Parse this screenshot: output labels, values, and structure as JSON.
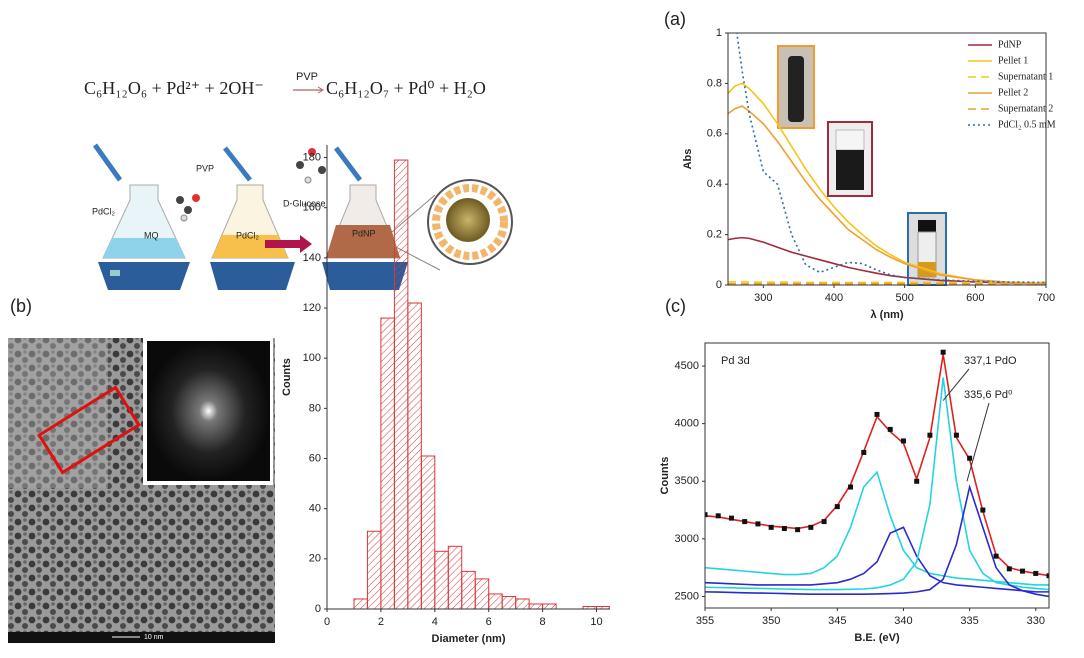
{
  "panel_labels": [
    "(a)",
    "(b)",
    "(c)"
  ],
  "scheme": {
    "reactants": "C₆H₁₂O₆ +  Pd²⁺ + 2OH⁻",
    "arrow_label": "PVP",
    "products": "C₆H₁₂O₇ +  Pd⁰ +  H₂O",
    "labels": [
      "PdCl₂",
      "PVP",
      "MQ",
      "PdCl₂",
      "D-Glucose",
      "PdNP"
    ]
  },
  "tem": {
    "scale_bar": "10 nm"
  },
  "chart_data": [
    {
      "type": "line",
      "xlabel": "λ (nm)",
      "ylabel": "Abs",
      "x": [
        250,
        260,
        270,
        280,
        300,
        320,
        340,
        360,
        380,
        400,
        420,
        440,
        460,
        480,
        500,
        550,
        600,
        650,
        700
      ],
      "xlim": [
        250,
        700
      ],
      "xticks": [
        300,
        400,
        500,
        600,
        700
      ],
      "ylim": [
        0,
        1
      ],
      "yticks": [
        0,
        0.2,
        0.4,
        0.6,
        0.8,
        1
      ],
      "legend": "upper right",
      "series": [
        {
          "name": "PdNP",
          "color": "#a3293d",
          "dash": "solid",
          "values": [
            0.18,
            0.185,
            0.188,
            0.185,
            0.17,
            0.15,
            0.13,
            0.115,
            0.1,
            0.085,
            0.07,
            0.058,
            0.047,
            0.037,
            0.03,
            0.018,
            0.012,
            0.008,
            0.005
          ]
        },
        {
          "name": "Pellet 1",
          "color": "#f5c518",
          "dash": "solid",
          "values": [
            0.76,
            0.79,
            0.8,
            0.78,
            0.72,
            0.64,
            0.55,
            0.46,
            0.38,
            0.31,
            0.25,
            0.2,
            0.155,
            0.12,
            0.09,
            0.045,
            0.02,
            0.01,
            0.005
          ]
        },
        {
          "name": "Supernatant 1",
          "color": "#f5c518",
          "dash": "dashed",
          "values": [
            0.012,
            0.012,
            0.012,
            0.012,
            0.011,
            0.011,
            0.011,
            0.01,
            0.01,
            0.01,
            0.01,
            0.01,
            0.01,
            0.01,
            0.01,
            0.01,
            0.01,
            0.01,
            0.01
          ]
        },
        {
          "name": "Pellet 2",
          "color": "#f0a030",
          "dash": "solid",
          "values": [
            0.68,
            0.7,
            0.71,
            0.69,
            0.64,
            0.57,
            0.49,
            0.41,
            0.34,
            0.28,
            0.22,
            0.18,
            0.14,
            0.11,
            0.085,
            0.04,
            0.02,
            0.01,
            0.005
          ]
        },
        {
          "name": "Supernatant 2",
          "color": "#f0a030",
          "dash": "dashed",
          "values": [
            0.005,
            0.005,
            0.005,
            0.005,
            0.005,
            0.005,
            0.005,
            0.005,
            0.005,
            0.005,
            0.005,
            0.005,
            0.005,
            0.005,
            0.005,
            0.005,
            0.005,
            0.005,
            0.005
          ]
        },
        {
          "name": "PdCl₂ 0.5 mM",
          "color": "#2a6fa8",
          "dash": "dotted",
          "values": [
            1.2,
            1.05,
            0.85,
            0.68,
            0.45,
            0.4,
            0.2,
            0.08,
            0.05,
            0.07,
            0.09,
            0.085,
            0.06,
            0.04,
            0.03,
            0.02,
            0.015,
            0.012,
            0.01
          ]
        }
      ]
    },
    {
      "type": "histogram",
      "xlabel": "Diameter (nm)",
      "ylabel": "Counts",
      "color": "#d9383a",
      "bins": [
        1,
        1.5,
        2,
        2.5,
        3,
        3.5,
        4,
        4.5,
        5,
        5.5,
        6,
        6.5,
        7,
        7.5,
        8,
        8.5,
        9,
        9.5,
        10,
        10.5
      ],
      "values": [
        4,
        31,
        116,
        179,
        122,
        61,
        23,
        25,
        15,
        12,
        6,
        5,
        4,
        2,
        2,
        0,
        0,
        1,
        1
      ],
      "xlim": [
        0,
        10.5
      ],
      "xticks": [
        0,
        2,
        4,
        6,
        8,
        10
      ],
      "ylim": [
        0,
        185
      ],
      "yticks": [
        0,
        20,
        40,
        60,
        80,
        100,
        120,
        140,
        160,
        180
      ]
    },
    {
      "type": "line",
      "xlabel": "B.E. (eV)",
      "ylabel": "Counts",
      "annotations": [
        "Pd 3d",
        "337,1 PdO",
        "335,6 Pd⁰"
      ],
      "x": [
        355,
        354,
        353,
        352,
        351,
        350,
        349,
        348,
        347,
        346,
        345,
        344,
        343,
        342,
        341,
        340,
        339,
        338,
        337,
        336,
        335,
        334,
        333,
        332,
        331,
        330,
        329
      ],
      "xlim": [
        355,
        329
      ],
      "xticks": [
        355,
        350,
        345,
        340,
        335,
        330
      ],
      "ylim": [
        2400,
        4700
      ],
      "yticks": [
        2500,
        3000,
        3500,
        4000,
        4500
      ],
      "series": [
        {
          "color": "#22d3e6",
          "dash": "solid",
          "values": [
            2750,
            2740,
            2730,
            2720,
            2710,
            2700,
            2690,
            2690,
            2700,
            2750,
            2850,
            3100,
            3450,
            3580,
            3200,
            2900,
            2750,
            2700,
            2680,
            2660,
            2650,
            2640,
            2630,
            2620,
            2610,
            2600,
            2600
          ]
        },
        {
          "color": "#2a2ad0",
          "dash": "solid",
          "values": [
            2620,
            2615,
            2610,
            2605,
            2600,
            2600,
            2600,
            2600,
            2600,
            2610,
            2620,
            2650,
            2700,
            2800,
            3050,
            3100,
            2850,
            2680,
            2620,
            2600,
            2590,
            2580,
            2570,
            2560,
            2550,
            2540,
            2540
          ]
        },
        {
          "color": "#22d3e6",
          "dash": "solid",
          "values": [
            2580,
            2578,
            2575,
            2572,
            2570,
            2568,
            2565,
            2562,
            2560,
            2560,
            2560,
            2562,
            2565,
            2575,
            2600,
            2650,
            2800,
            3300,
            4400,
            3500,
            2900,
            2700,
            2620,
            2600,
            2580,
            2570,
            2560
          ]
        },
        {
          "color": "#2a2ad0",
          "dash": "solid",
          "values": [
            2540,
            2538,
            2535,
            2532,
            2530,
            2528,
            2525,
            2522,
            2520,
            2520,
            2520,
            2520,
            2520,
            2522,
            2525,
            2530,
            2540,
            2560,
            2650,
            2950,
            3450,
            3100,
            2750,
            2600,
            2550,
            2520,
            2500
          ]
        },
        {
          "color": "#e0201c",
          "dash": "solid",
          "values": [
            3200,
            3190,
            3170,
            3150,
            3130,
            3110,
            3100,
            3090,
            3110,
            3160,
            3290,
            3470,
            3760,
            4060,
            3930,
            3830,
            3520,
            3880,
            4600,
            3880,
            3690,
            3240,
            2860,
            2750,
            2720,
            2700,
            2680
          ]
        },
        {
          "color": "#111111",
          "marker": "square",
          "values": [
            3210,
            3200,
            3180,
            3150,
            3130,
            3100,
            3090,
            3080,
            3100,
            3150,
            3280,
            3450,
            3750,
            4080,
            3950,
            3850,
            3500,
            3900,
            4620,
            3900,
            3700,
            3250,
            2850,
            2740,
            2720,
            2700,
            2680
          ]
        }
      ]
    }
  ]
}
